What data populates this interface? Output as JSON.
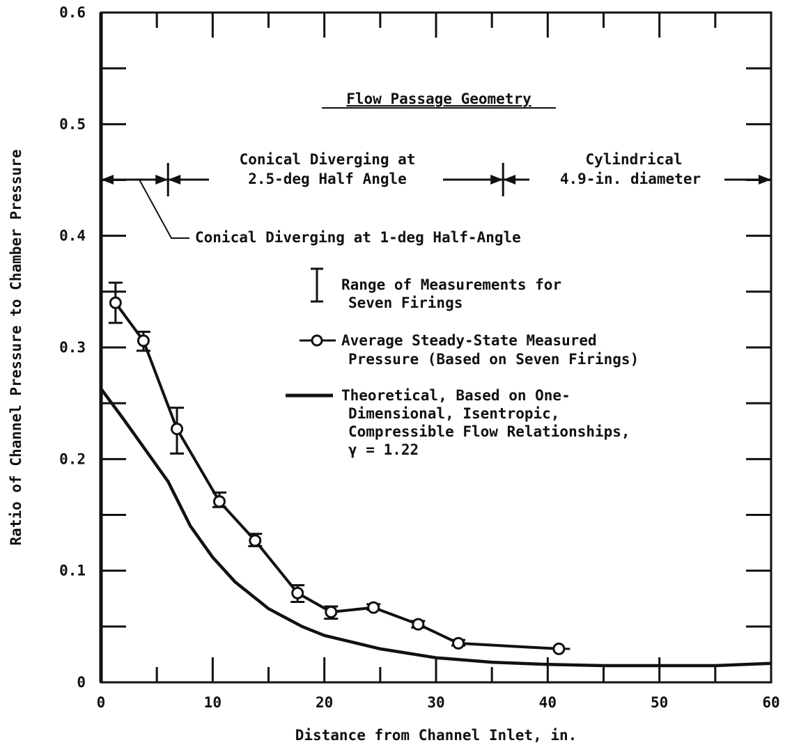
{
  "chart_data": {
    "type": "line",
    "title": "",
    "xlabel": "Distance from Channel Inlet, in.",
    "ylabel": "Ratio of Channel Pressure to Chamber Pressure",
    "xlim": [
      0,
      60
    ],
    "ylim": [
      0,
      0.6
    ],
    "x_ticks": [
      0,
      10,
      20,
      30,
      40,
      50,
      60
    ],
    "x_tick_labels": [
      "0",
      "10",
      "20",
      "30",
      "40",
      "50",
      "60"
    ],
    "y_ticks": [
      0,
      0.1,
      0.2,
      0.3,
      0.4,
      0.5,
      0.6
    ],
    "y_tick_labels": [
      "0",
      "0.1",
      "0.2",
      "0.3",
      "0.4",
      "0.5",
      "0.6"
    ],
    "grid": false,
    "legend_position": "center-right",
    "series": [
      {
        "name": "Average Steady-State Measured Pressure (Based on Seven Firings)",
        "marker": "open-circle",
        "x": [
          1.3,
          3.8,
          6.8,
          10.6,
          13.8,
          17.6,
          20.6,
          24.4,
          28.4,
          32.0,
          41.0
        ],
        "y": [
          0.34,
          0.306,
          0.227,
          0.162,
          0.127,
          0.08,
          0.063,
          0.067,
          0.052,
          0.035,
          0.03
        ],
        "range_low": [
          0.322,
          0.297,
          0.205,
          0.157,
          0.122,
          0.072,
          0.057,
          0.065,
          0.049,
          0.033,
          null
        ],
        "range_high": [
          0.358,
          0.314,
          0.246,
          0.17,
          0.133,
          0.087,
          0.068,
          0.07,
          0.055,
          0.038,
          null
        ]
      },
      {
        "name": "Theoretical, Based on One-Dimensional, Isentropic, Compressible Flow Relationships, γ = 1.22",
        "marker": "none",
        "x": [
          0,
          2,
          4,
          6,
          8,
          10,
          12,
          15,
          18,
          20,
          25,
          30,
          35,
          40,
          45,
          50,
          55,
          60
        ],
        "y": [
          0.263,
          0.236,
          0.208,
          0.18,
          0.14,
          0.112,
          0.09,
          0.066,
          0.05,
          0.042,
          0.03,
          0.022,
          0.018,
          0.016,
          0.015,
          0.015,
          0.015,
          0.017
        ]
      }
    ],
    "annotations": {
      "geometry_title": "Flow Passage Geometry",
      "conical_2_5_line1": "Conical Diverging at",
      "conical_2_5_line2": "2.5-deg Half Angle",
      "cylindrical_line1": "Cylindrical",
      "cylindrical_line2": "4.9-in. diameter",
      "conical_1_deg": "Conical Diverging at 1-deg Half-Angle",
      "segment_boundaries_x": [
        6,
        36
      ]
    },
    "legend": {
      "range_line1": "Range of Measurements for",
      "range_line2": "Seven Firings",
      "average_line1": "Average Steady-State Measured",
      "average_line2": "Pressure (Based on Seven Firings)",
      "theory_line1": "Theoretical, Based on One-",
      "theory_line2": "Dimensional, Isentropic,",
      "theory_line3": "Compressible Flow Relationships,",
      "theory_line4": "γ = 1.22"
    }
  }
}
